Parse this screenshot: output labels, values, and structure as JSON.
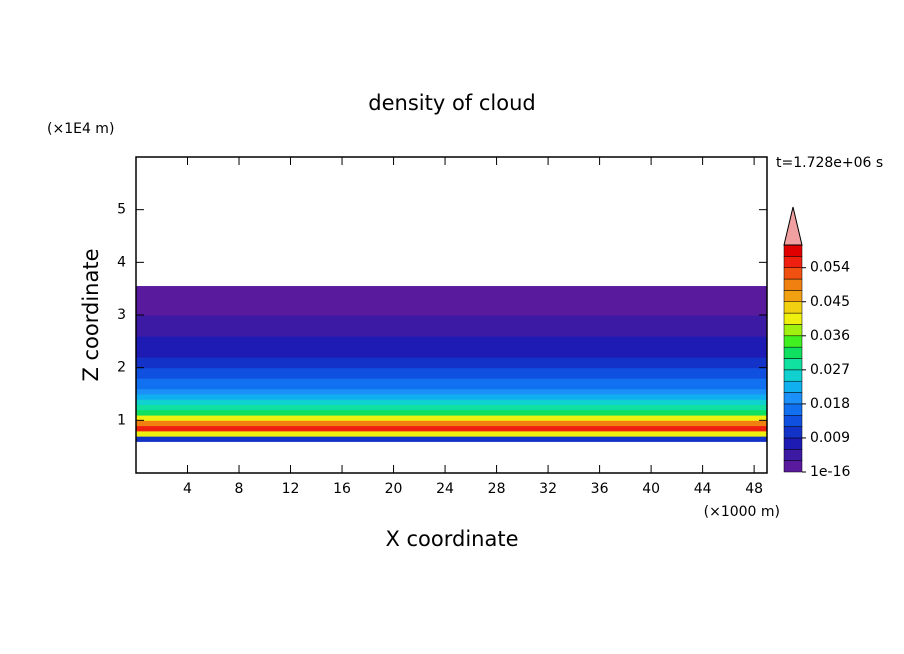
{
  "chart_data": {
    "type": "contour",
    "title": "density of cloud",
    "x_label": "X coordinate",
    "x_unit": "(×1000 m)",
    "y_label": "Z coordinate",
    "y_unit": "(×1E4 m)",
    "time_label": "t=1.728e+06 s",
    "xlim": [
      0,
      49
    ],
    "ylim": [
      0,
      6
    ],
    "xticks": [
      4,
      8,
      12,
      16,
      20,
      24,
      28,
      32,
      36,
      40,
      44,
      48
    ],
    "yticks": [
      1,
      2,
      3,
      4,
      5
    ],
    "z_edges": [
      0.6,
      0.7,
      0.8,
      0.9,
      1.0,
      1.1,
      1.2,
      1.3,
      1.4,
      1.5,
      1.6,
      1.8,
      2.0,
      2.2,
      2.4,
      2.6,
      2.8,
      3.0,
      3.2,
      3.55
    ],
    "values": [
      0.012,
      0.042,
      0.055,
      0.05,
      0.04,
      0.032,
      0.028,
      0.025,
      0.022,
      0.019,
      0.016,
      0.013,
      0.011,
      0.009,
      0.007,
      0.006,
      0.004,
      0.002,
      0.001
    ],
    "clim": [
      1e-16,
      0.06
    ],
    "cticks": [
      1e-16,
      0.009,
      0.018,
      0.027,
      0.036,
      0.045,
      0.054
    ],
    "colors": [
      "#5a1a9e",
      "#3c1aa4",
      "#1e1ab4",
      "#1232c8",
      "#1050e0",
      "#1070f0",
      "#1a90f8",
      "#10b0f0",
      "#10d0d0",
      "#10e0a0",
      "#10e060",
      "#40f020",
      "#a0f010",
      "#f0f010",
      "#f0d010",
      "#f0a010",
      "#f08010",
      "#f05010",
      "#f02010",
      "#e00000"
    ],
    "over_color": "#f0a0a0"
  }
}
